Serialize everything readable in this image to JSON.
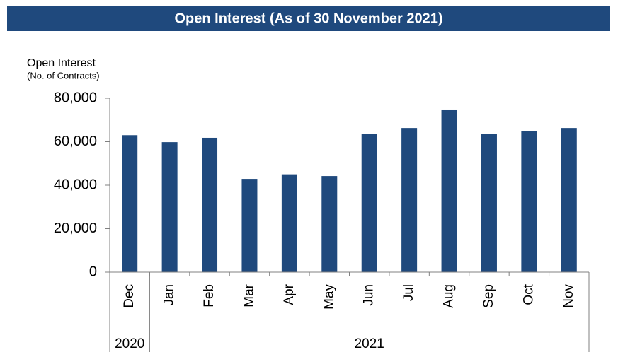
{
  "chart_data": {
    "type": "bar",
    "title": "Open Interest (As of 30 November 2021)",
    "y_label": "Open Interest",
    "y_sublabel": "(No. of Contracts)",
    "categories": [
      "Dec",
      "Jan",
      "Feb",
      "Mar",
      "Apr",
      "May",
      "Jun",
      "Jul",
      "Aug",
      "Sep",
      "Oct",
      "Nov"
    ],
    "values": [
      63000,
      59800,
      61800,
      42900,
      45000,
      44200,
      63700,
      66300,
      74800,
      63700,
      65000,
      66300
    ],
    "color": "#1f497d",
    "x_groups": [
      {
        "label": "2020",
        "count": 1
      },
      {
        "label": "2021",
        "count": 11
      }
    ],
    "ylim": [
      0,
      80000
    ],
    "yticks": [
      0,
      {
        "value": 20000,
        "label": "20,000"
      },
      {
        "value": 40000,
        "label": "40,000"
      },
      {
        "value": 60000,
        "label": "60,000"
      },
      {
        "value": 80000,
        "label": "80,000"
      }
    ],
    "grid": false
  }
}
